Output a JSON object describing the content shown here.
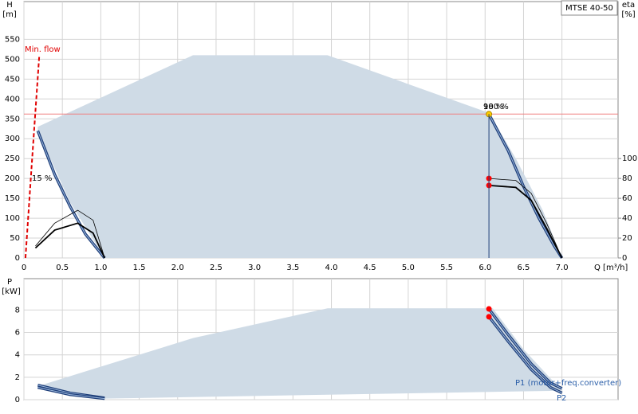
{
  "chart_data": [
    {
      "type": "line",
      "ylabel": "H",
      "yunit": "[m]",
      "y2label": "eta",
      "y2unit": "[%]",
      "xlabel": "Q [m³/h]",
      "legend_text": "MTSE 40-50",
      "min_flow_label": "Min. flow",
      "eta_min_label": "15 %",
      "duty_labels": [
        "100 %",
        "98 %"
      ],
      "xlim": [
        0,
        7.73
      ],
      "ylim": [
        0,
        645
      ],
      "y2lim": [
        0,
        258
      ],
      "grid": true,
      "xtick_labels": true,
      "xticks": [
        0,
        0.5,
        {
          "value": 1,
          "label": "1.0"
        },
        1.5,
        {
          "value": 2,
          "label": "2.0"
        },
        2.5,
        {
          "value": 3,
          "label": "3.0"
        },
        3.5,
        {
          "value": 4,
          "label": "4.0"
        },
        4.5,
        {
          "value": 5,
          "label": "5.0"
        },
        5.5,
        {
          "value": 6,
          "label": "6.0"
        },
        6.5,
        {
          "value": 7,
          "label": "7.0"
        }
      ],
      "yticks": [
        0,
        50,
        100,
        150,
        200,
        250,
        300,
        350,
        400,
        450,
        500,
        550
      ],
      "y2ticks": [
        0,
        20,
        40,
        60,
        80,
        100
      ],
      "duty_h": 362,
      "series": [
        {
          "kind": "area",
          "color": "#cfdbe6",
          "x": [
            0.18,
            2.2,
            3.95,
            6.05,
            6.4,
            6.75,
            7.0,
            1.05,
            0.6,
            0.18
          ],
          "values": [
            330,
            510,
            510,
            365,
            250,
            120,
            0,
            0,
            140,
            320
          ]
        },
        {
          "kind": "dashed",
          "color": "#e00000",
          "x": [
            0.02,
            0.1,
            0.2
          ],
          "values": [
            0,
            230,
            510
          ]
        },
        {
          "kind": "curve",
          "color": "#2e5c9a",
          "x": [
            0.18,
            0.4,
            0.6,
            0.8,
            1.05
          ],
          "values": [
            320,
            210,
            130,
            60,
            0
          ]
        },
        {
          "kind": "curve",
          "color": "#2e5c9a",
          "x": [
            6.05,
            6.3,
            6.5,
            6.7,
            6.9,
            7.0
          ],
          "values": [
            362,
            270,
            180,
            100,
            30,
            0
          ]
        },
        {
          "kind": "thin",
          "color": "#000000",
          "axis": "y2",
          "x": [
            0.15,
            0.4,
            0.7,
            0.9,
            1.05
          ],
          "values": [
            12,
            35,
            48,
            38,
            0
          ]
        },
        {
          "kind": "bold",
          "color": "#000000",
          "axis": "y2",
          "x": [
            0.15,
            0.4,
            0.7,
            0.9,
            1.05
          ],
          "values": [
            10,
            28,
            35,
            25,
            0
          ]
        },
        {
          "kind": "thin",
          "color": "#000000",
          "axis": "y2",
          "x": [
            6.05,
            6.4,
            6.6,
            6.8,
            7.0
          ],
          "values": [
            80,
            78,
            65,
            35,
            0
          ]
        },
        {
          "kind": "bold",
          "color": "#000000",
          "axis": "y2",
          "x": [
            6.05,
            6.4,
            6.6,
            6.8,
            7.0
          ],
          "values": [
            73,
            71,
            58,
            30,
            0
          ]
        },
        {
          "kind": "point",
          "color": "#ffcc00",
          "x": [
            6.05
          ],
          "values": [
            362
          ]
        },
        {
          "kind": "point",
          "color": "#ff0000",
          "axis": "y2",
          "x": [
            6.05,
            6.05
          ],
          "values": [
            80,
            73
          ]
        }
      ]
    },
    {
      "type": "line",
      "ylabel": "P",
      "yunit": "[kW]",
      "p1_label": "P1 (motor+freq.converter)",
      "p2_label": "P2",
      "xlim": [
        0,
        7.73
      ],
      "ylim": [
        0,
        10.8
      ],
      "grid": true,
      "xtick_labels": false,
      "xticks": [
        0,
        0.5,
        1,
        1.5,
        2,
        2.5,
        3,
        3.5,
        4,
        4.5,
        5,
        5.5,
        6,
        6.5,
        7
      ],
      "yticks": [
        0,
        2,
        4,
        6,
        8
      ],
      "series": [
        {
          "kind": "area",
          "color": "#cfdbe6",
          "x": [
            0.18,
            2.2,
            3.95,
            6.1,
            6.5,
            7.0,
            1.05,
            0.18
          ],
          "values": [
            1.2,
            5.5,
            8.15,
            8.15,
            4.5,
            0.8,
            0.1,
            1.0
          ]
        },
        {
          "kind": "curve",
          "color": "#2e5c9a",
          "x": [
            6.05,
            6.3,
            6.6,
            6.85,
            7.0
          ],
          "values": [
            8.1,
            5.8,
            3.2,
            1.5,
            1.0
          ]
        },
        {
          "kind": "curve",
          "color": "#2e5c9a",
          "x": [
            6.05,
            6.3,
            6.6,
            6.85,
            7.0
          ],
          "values": [
            7.4,
            5.2,
            2.7,
            1.1,
            0.6
          ]
        },
        {
          "kind": "curve",
          "color": "#2e5c9a",
          "x": [
            0.18,
            0.6,
            1.05
          ],
          "values": [
            1.3,
            0.6,
            0.15
          ]
        },
        {
          "kind": "curve",
          "color": "#2e5c9a",
          "x": [
            0.18,
            0.6,
            1.05
          ],
          "values": [
            1.1,
            0.45,
            0.1
          ]
        },
        {
          "kind": "point",
          "color": "#ff0000",
          "x": [
            6.05,
            6.05
          ],
          "values": [
            8.1,
            7.4
          ]
        }
      ]
    }
  ]
}
